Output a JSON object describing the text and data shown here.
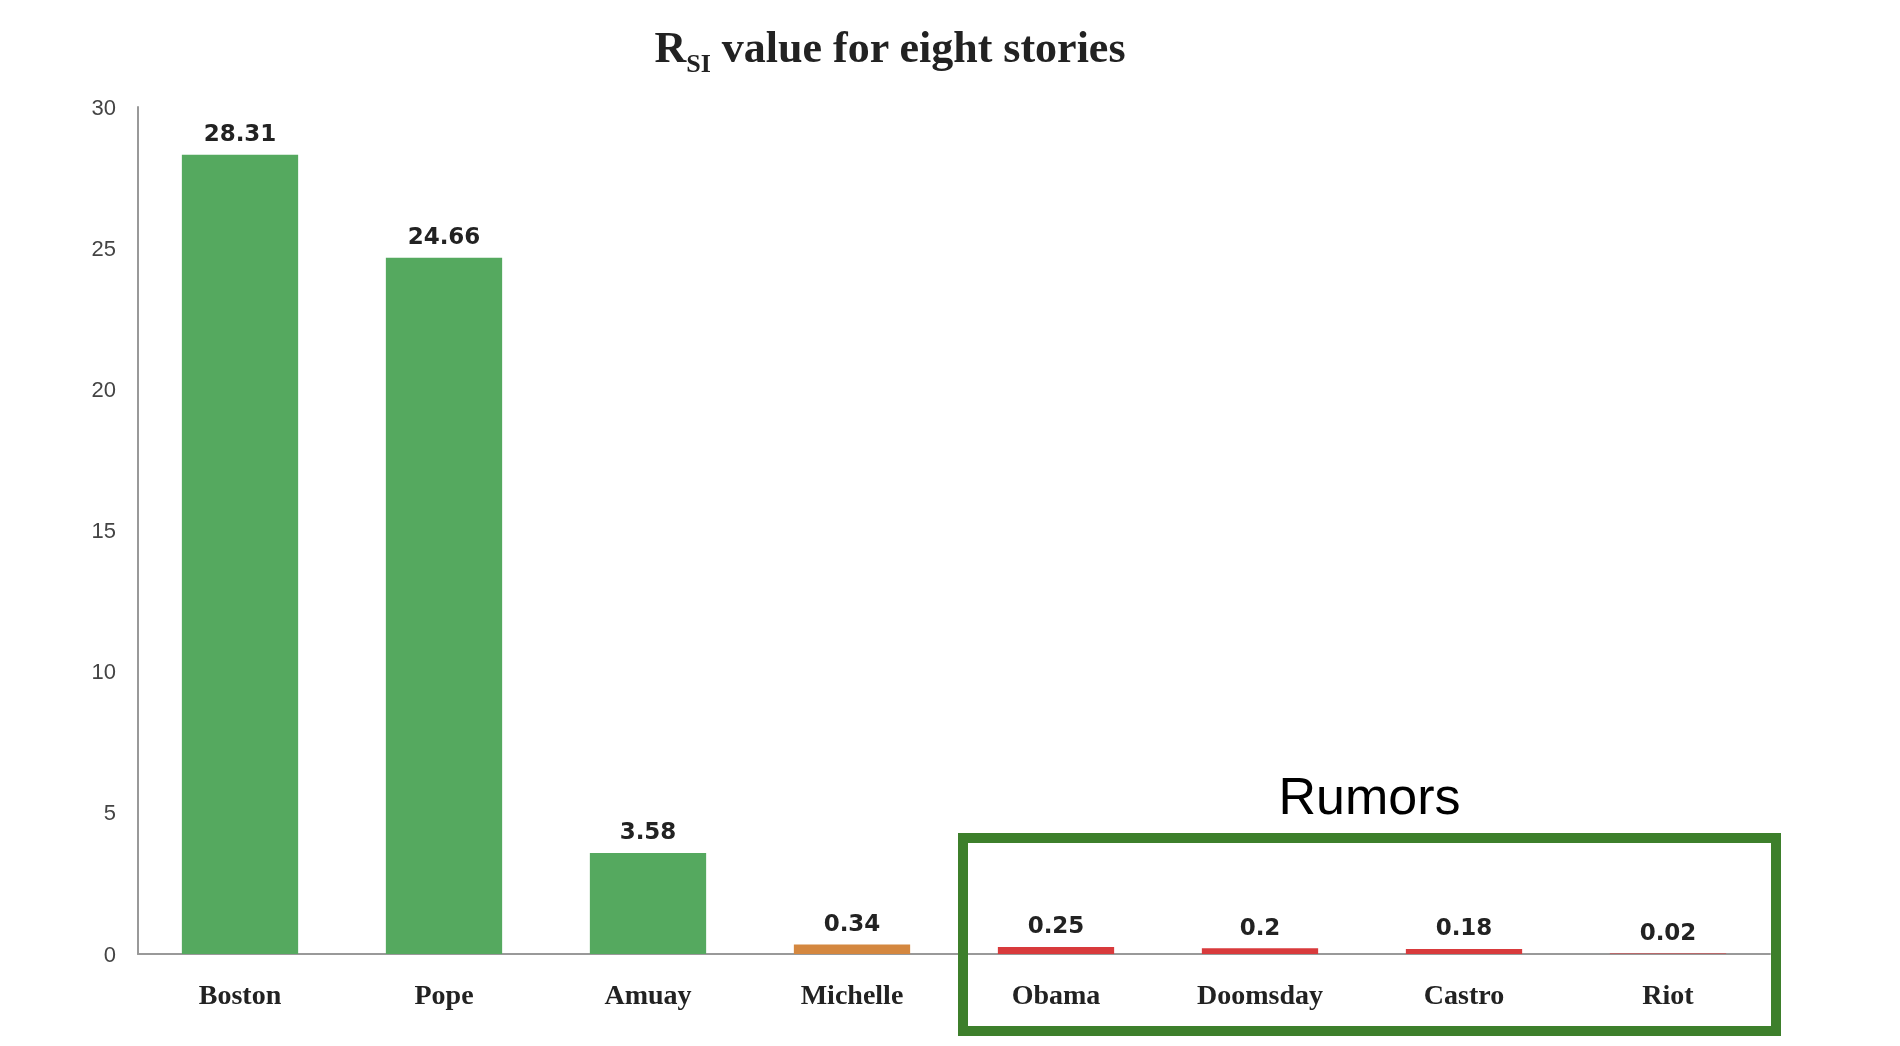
{
  "chart_data": {
    "type": "bar",
    "title": "R$_{SI}$ value for eight stories",
    "categories": [
      "Boston",
      "Pope",
      "Amuay",
      "Michelle",
      "Obama",
      "Doomsday",
      "Castro",
      "Riot"
    ],
    "values": [
      28.31,
      24.66,
      3.58,
      0.34,
      0.25,
      0.2,
      0.18,
      0.02
    ],
    "colors": [
      "#55a95f",
      "#55a95f",
      "#55a95f",
      "#d4873f",
      "#d83a3c",
      "#d83a3c",
      "#d83a3c",
      "#d83a3c"
    ],
    "ylim": [
      0,
      30
    ],
    "yticks": [
      0,
      5,
      10,
      15,
      20,
      25,
      30
    ],
    "data_labels": true,
    "grid": false,
    "annotations": [
      "Rumors"
    ]
  }
}
